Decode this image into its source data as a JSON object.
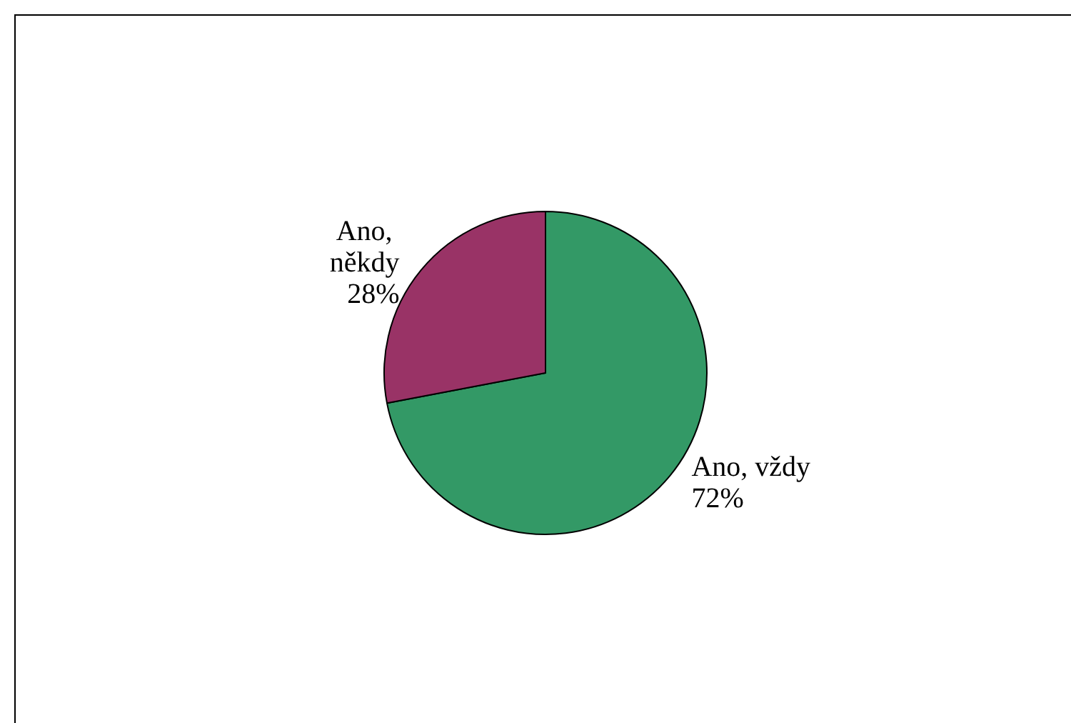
{
  "chart_data": {
    "type": "pie",
    "categories": [
      "Ano, vždy",
      "Ano, někdy"
    ],
    "values": [
      72,
      28
    ],
    "colors": [
      "#339966",
      "#993366"
    ],
    "value_labels": [
      "72%",
      "28%"
    ],
    "legend": false
  }
}
